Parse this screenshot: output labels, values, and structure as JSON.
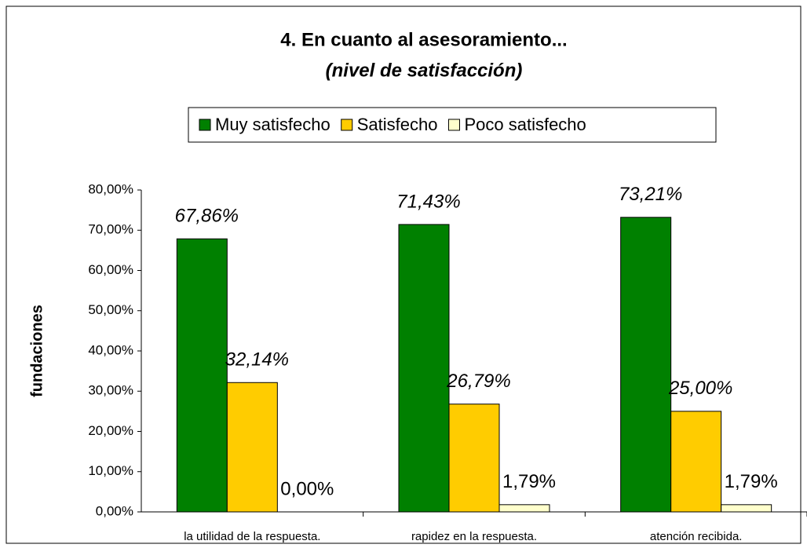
{
  "chart_data": {
    "type": "bar",
    "title": "4. En cuanto al asesoramiento...",
    "subtitle": "(nivel de satisfacción)",
    "y_label": "fundaciones",
    "categories": [
      "la utilidad de la respuesta.",
      "rapidez en la respuesta.",
      "atención recibida."
    ],
    "series": [
      {
        "name": "Muy satisfecho",
        "color": "#008000",
        "values": [
          67.86,
          71.43,
          73.21
        ],
        "value_labels": [
          "67,86%",
          "71,43%",
          "73,21%"
        ]
      },
      {
        "name": "Satisfecho",
        "color": "#FFCC00",
        "values": [
          32.14,
          26.79,
          25.0
        ],
        "value_labels": [
          "32,14%",
          "26,79%",
          "25,00%"
        ]
      },
      {
        "name": "Poco satisfecho",
        "color": "#FFFFCC",
        "values": [
          0.0,
          1.79,
          1.79
        ],
        "value_labels": [
          "0,00%",
          "1,79%",
          "1,79%"
        ]
      }
    ],
    "ylim": [
      0,
      80
    ],
    "yticks": [
      {
        "value": 0,
        "label": "0,00%"
      },
      {
        "value": 10,
        "label": "10,00%"
      },
      {
        "value": 20,
        "label": "20,00%"
      },
      {
        "value": 30,
        "label": "30,00%"
      },
      {
        "value": 40,
        "label": "40,00%"
      },
      {
        "value": 50,
        "label": "50,00%"
      },
      {
        "value": 60,
        "label": "60,00%"
      },
      {
        "value": 70,
        "label": "70,00%"
      },
      {
        "value": 80,
        "label": "80,00%"
      }
    ],
    "grid": false,
    "legend": "top"
  }
}
